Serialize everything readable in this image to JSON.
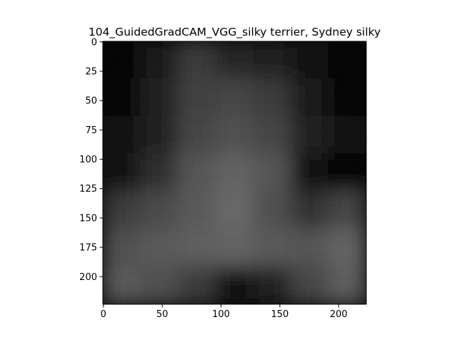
{
  "chart_data": {
    "type": "heatmap",
    "title": "104_GuidedGradCAM_VGG_silky terrier, Sydney silky",
    "xlabel": "",
    "ylabel": "",
    "xlim": [
      -0.5,
      223.5
    ],
    "ylim": [
      223.5,
      -0.5
    ],
    "y_inverted": true,
    "grid": false,
    "legend": "none",
    "colormap": "gray",
    "xticks": [
      0,
      50,
      100,
      150,
      200
    ],
    "xtick_labels": [
      "0",
      "50",
      "100",
      "150",
      "200"
    ],
    "yticks": [
      0,
      25,
      50,
      75,
      100,
      125,
      150,
      175,
      200
    ],
    "ytick_labels": [
      "0",
      "25",
      "50",
      "75",
      "100",
      "125",
      "150",
      "175",
      "200"
    ],
    "intensity_grid_7x7": [
      [
        0.02,
        0.08,
        0.22,
        0.14,
        0.1,
        0.06,
        0.02
      ],
      [
        0.02,
        0.1,
        0.24,
        0.26,
        0.22,
        0.08,
        0.02
      ],
      [
        0.03,
        0.12,
        0.26,
        0.3,
        0.26,
        0.1,
        0.03
      ],
      [
        0.05,
        0.16,
        0.32,
        0.38,
        0.32,
        0.06,
        0.02
      ],
      [
        0.22,
        0.28,
        0.34,
        0.4,
        0.3,
        0.18,
        0.26
      ],
      [
        0.3,
        0.34,
        0.36,
        0.38,
        0.34,
        0.32,
        0.38
      ],
      [
        0.34,
        0.3,
        0.22,
        0.06,
        0.1,
        0.26,
        0.36
      ]
    ]
  }
}
